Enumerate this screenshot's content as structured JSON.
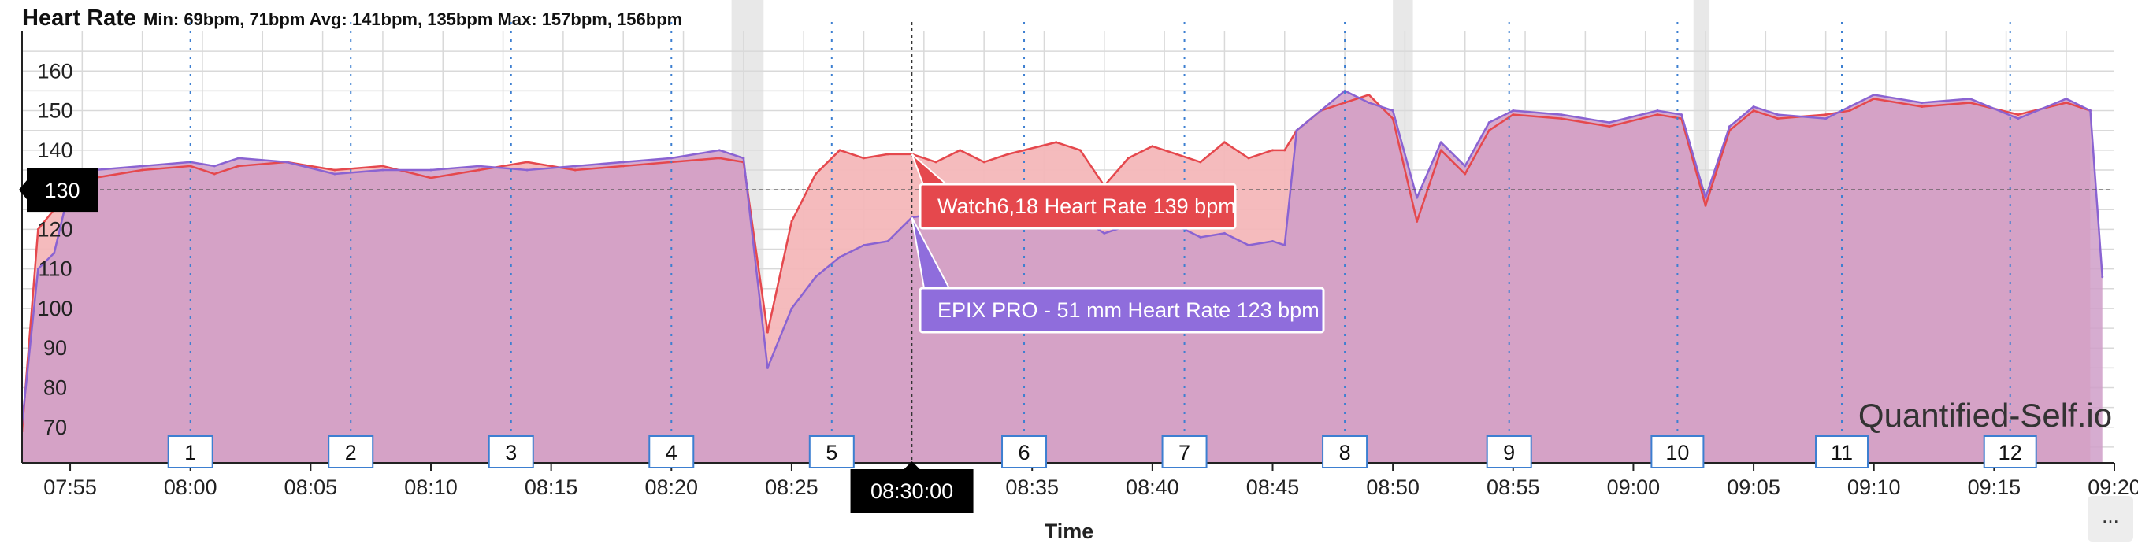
{
  "header": {
    "title": "Heart Rate",
    "stats": "Min: 69bpm, 71bpm  Avg: 141bpm, 135bpm  Max: 157bpm, 156bpm"
  },
  "watermark": "Quantified-Self.io",
  "more_button_label": "...",
  "chart_data": {
    "type": "area",
    "title": "Heart Rate",
    "xlabel": "Time",
    "ylabel": "",
    "x_range": [
      "07:53",
      "09:20"
    ],
    "ylim": [
      61,
      170
    ],
    "y_ticks": [
      70,
      80,
      90,
      100,
      110,
      120,
      130,
      140,
      150,
      160
    ],
    "x_ticks": [
      "07:55",
      "08:00",
      "08:05",
      "08:10",
      "08:15",
      "08:20",
      "08:25",
      "08:30:00",
      "08:35",
      "08:40",
      "08:45",
      "08:50",
      "08:55",
      "09:00",
      "09:05",
      "09:10",
      "09:15",
      "09:20"
    ],
    "grid": true,
    "series": [
      {
        "name": "Watch6,18",
        "color": "#e5484d",
        "fill": "#f4b7b9",
        "points": [
          [
            "07:53:00",
            69
          ],
          [
            "07:53:40",
            120
          ],
          [
            "07:54:20",
            125
          ],
          [
            "07:55:00",
            129
          ],
          [
            "07:56:00",
            133
          ],
          [
            "07:58:00",
            135
          ],
          [
            "08:00:00",
            136
          ],
          [
            "08:01:00",
            134
          ],
          [
            "08:02:00",
            136
          ],
          [
            "08:04:00",
            137
          ],
          [
            "08:06:00",
            135
          ],
          [
            "08:08:00",
            136
          ],
          [
            "08:10:00",
            133
          ],
          [
            "08:12:00",
            135
          ],
          [
            "08:14:00",
            137
          ],
          [
            "08:16:00",
            135
          ],
          [
            "08:18:00",
            136
          ],
          [
            "08:20:00",
            137
          ],
          [
            "08:22:00",
            138
          ],
          [
            "08:23:00",
            137
          ],
          [
            "08:24:00",
            94
          ],
          [
            "08:25:00",
            122
          ],
          [
            "08:26:00",
            134
          ],
          [
            "08:27:00",
            140
          ],
          [
            "08:28:00",
            138
          ],
          [
            "08:29:00",
            139
          ],
          [
            "08:30:00",
            139
          ],
          [
            "08:31:00",
            137
          ],
          [
            "08:32:00",
            140
          ],
          [
            "08:33:00",
            137
          ],
          [
            "08:34:00",
            139
          ],
          [
            "08:36:00",
            142
          ],
          [
            "08:37:00",
            140
          ],
          [
            "08:38:00",
            131
          ],
          [
            "08:39:00",
            138
          ],
          [
            "08:40:00",
            141
          ],
          [
            "08:41:00",
            139
          ],
          [
            "08:42:00",
            137
          ],
          [
            "08:43:00",
            142
          ],
          [
            "08:44:00",
            138
          ],
          [
            "08:45:00",
            140
          ],
          [
            "08:45:30",
            140
          ],
          [
            "08:46:00",
            145
          ],
          [
            "08:47:00",
            150
          ],
          [
            "08:48:00",
            152
          ],
          [
            "08:49:00",
            154
          ],
          [
            "08:50:00",
            148
          ],
          [
            "08:51:00",
            122
          ],
          [
            "08:52:00",
            140
          ],
          [
            "08:53:00",
            134
          ],
          [
            "08:54:00",
            145
          ],
          [
            "08:55:00",
            149
          ],
          [
            "08:57:00",
            148
          ],
          [
            "08:59:00",
            146
          ],
          [
            "09:01:00",
            149
          ],
          [
            "09:02:00",
            148
          ],
          [
            "09:03:00",
            126
          ],
          [
            "09:04:00",
            145
          ],
          [
            "09:05:00",
            150
          ],
          [
            "09:06:00",
            148
          ],
          [
            "09:08:00",
            149
          ],
          [
            "09:09:00",
            150
          ],
          [
            "09:10:00",
            153
          ],
          [
            "09:12:00",
            151
          ],
          [
            "09:14:00",
            152
          ],
          [
            "09:16:00",
            149
          ],
          [
            "09:18:00",
            152
          ],
          [
            "09:19:00",
            150
          ]
        ]
      },
      {
        "name": "EPIX PRO - 51 mm",
        "color": "#8a63d2",
        "fill": "#cf9ec8",
        "points": [
          [
            "07:53:00",
            71
          ],
          [
            "07:53:40",
            110
          ],
          [
            "07:54:20",
            114
          ],
          [
            "07:55:00",
            131
          ],
          [
            "07:56:00",
            135
          ],
          [
            "07:58:00",
            136
          ],
          [
            "08:00:00",
            137
          ],
          [
            "08:01:00",
            136
          ],
          [
            "08:02:00",
            138
          ],
          [
            "08:04:00",
            137
          ],
          [
            "08:06:00",
            134
          ],
          [
            "08:08:00",
            135
          ],
          [
            "08:10:00",
            135
          ],
          [
            "08:12:00",
            136
          ],
          [
            "08:14:00",
            135
          ],
          [
            "08:16:00",
            136
          ],
          [
            "08:18:00",
            137
          ],
          [
            "08:20:00",
            138
          ],
          [
            "08:22:00",
            140
          ],
          [
            "08:23:00",
            138
          ],
          [
            "08:24:00",
            85
          ],
          [
            "08:25:00",
            100
          ],
          [
            "08:26:00",
            108
          ],
          [
            "08:27:00",
            113
          ],
          [
            "08:28:00",
            116
          ],
          [
            "08:29:00",
            117
          ],
          [
            "08:30:00",
            123
          ],
          [
            "08:31:00",
            124
          ],
          [
            "08:32:00",
            126
          ],
          [
            "08:33:00",
            122
          ],
          [
            "08:34:00",
            124
          ],
          [
            "08:36:00",
            126
          ],
          [
            "08:37:00",
            123
          ],
          [
            "08:38:00",
            119
          ],
          [
            "08:39:00",
            121
          ],
          [
            "08:40:00",
            121
          ],
          [
            "08:41:00",
            121
          ],
          [
            "08:42:00",
            118
          ],
          [
            "08:43:00",
            119
          ],
          [
            "08:44:00",
            116
          ],
          [
            "08:45:00",
            117
          ],
          [
            "08:45:30",
            116
          ],
          [
            "08:46:00",
            145
          ],
          [
            "08:47:00",
            150
          ],
          [
            "08:48:00",
            155
          ],
          [
            "08:49:00",
            152
          ],
          [
            "08:50:00",
            150
          ],
          [
            "08:51:00",
            128
          ],
          [
            "08:52:00",
            142
          ],
          [
            "08:53:00",
            136
          ],
          [
            "08:54:00",
            147
          ],
          [
            "08:55:00",
            150
          ],
          [
            "08:57:00",
            149
          ],
          [
            "08:59:00",
            147
          ],
          [
            "09:01:00",
            150
          ],
          [
            "09:02:00",
            149
          ],
          [
            "09:03:00",
            128
          ],
          [
            "09:04:00",
            146
          ],
          [
            "09:05:00",
            151
          ],
          [
            "09:06:00",
            149
          ],
          [
            "09:08:00",
            148
          ],
          [
            "09:09:00",
            151
          ],
          [
            "09:10:00",
            154
          ],
          [
            "09:12:00",
            152
          ],
          [
            "09:14:00",
            153
          ],
          [
            "09:16:00",
            148
          ],
          [
            "09:18:00",
            153
          ],
          [
            "09:19:00",
            150
          ],
          [
            "09:19:30",
            108
          ]
        ]
      }
    ],
    "laps": [
      {
        "label": "1",
        "time": "08:00"
      },
      {
        "label": "2",
        "time": "08:06:40"
      },
      {
        "label": "3",
        "time": "08:13:20"
      },
      {
        "label": "4",
        "time": "08:20:00"
      },
      {
        "label": "5",
        "time": "08:26:40"
      },
      {
        "label": "6",
        "time": "08:34:40"
      },
      {
        "label": "7",
        "time": "08:41:20"
      },
      {
        "label": "8",
        "time": "08:48:00"
      },
      {
        "label": "9",
        "time": "08:54:50"
      },
      {
        "label": "10",
        "time": "09:01:50"
      },
      {
        "label": "11",
        "time": "09:08:40"
      },
      {
        "label": "12",
        "time": "09:15:40"
      }
    ],
    "shaded_bands": [
      [
        "08:22:30",
        "08:23:50"
      ],
      [
        "08:50:00",
        "08:50:50"
      ],
      [
        "09:02:30",
        "09:03:10"
      ]
    ],
    "crosshair": {
      "x_label": "08:30:00",
      "y_label": "130",
      "y_value": 130
    },
    "tooltips": [
      {
        "text": "Watch6,18 Heart Rate 139 bpm",
        "series": "Watch6,18",
        "value": 139,
        "color": "#e5484d"
      },
      {
        "text": "EPIX PRO - 51 mm Heart Rate 123 bpm",
        "series": "EPIX PRO - 51 mm",
        "value": 123,
        "color": "#8f6ddc"
      }
    ]
  }
}
